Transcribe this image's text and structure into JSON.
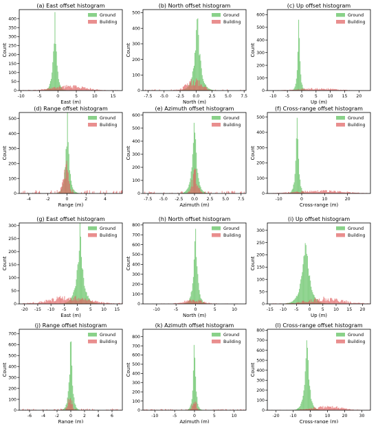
{
  "colors": {
    "ground": "#5cbf5c",
    "building": "#e06262"
  },
  "legend_labels": {
    "ground": "Ground",
    "building": "Building"
  },
  "chart_data": [
    {
      "type": "bar",
      "title": "(a) East offset histogram",
      "xlabel": "East (m)",
      "ylabel": "Count",
      "xlim": [
        -10.5,
        17.5
      ],
      "ylim": [
        0,
        450
      ],
      "xticks": [
        -10,
        -5,
        0,
        5,
        10,
        15
      ],
      "yticks": [
        0,
        50,
        100,
        150,
        200,
        250,
        300,
        350,
        400
      ],
      "legend": "top-right",
      "grid": false,
      "series": [
        {
          "name": "Ground",
          "center": -0.8,
          "peak": 425,
          "spread": 0.55
        },
        {
          "name": "Building",
          "center": 3,
          "peak": 22,
          "spread": 6
        }
      ]
    },
    {
      "type": "bar",
      "title": "(b) North offset histogram",
      "xlabel": "North (m)",
      "ylabel": "Count",
      "xlim": [
        -8.3,
        7.8
      ],
      "ylim": [
        0,
        520
      ],
      "xticks": [
        -7.5,
        -5.0,
        -2.5,
        0.0,
        2.5,
        5.0,
        7.5
      ],
      "yticks": [
        0,
        100,
        200,
        300,
        400,
        500
      ],
      "legend": "top-right",
      "grid": false,
      "series": [
        {
          "name": "Ground",
          "center": 0.2,
          "peak": 480,
          "spread": 0.5
        },
        {
          "name": "Building",
          "center": -0.3,
          "peak": 60,
          "spread": 1.5
        }
      ]
    },
    {
      "type": "bar",
      "title": "(c) Up offset histogram",
      "xlabel": "Up (m)",
      "ylabel": "Count",
      "xlim": [
        -12,
        24
      ],
      "ylim": [
        0,
        640
      ],
      "xticks": [
        -10,
        -5,
        0,
        5,
        10,
        15,
        20
      ],
      "yticks": [
        0,
        100,
        200,
        300,
        400,
        500,
        600
      ],
      "legend": "top-right",
      "grid": false,
      "series": [
        {
          "name": "Ground",
          "center": -1,
          "peak": 610,
          "spread": 0.45
        },
        {
          "name": "Building",
          "center": 5,
          "peak": 14,
          "spread": 9
        }
      ]
    },
    {
      "type": "bar",
      "title": "(d) Range offset histogram",
      "xlabel": "Range (m)",
      "ylabel": "Count",
      "xlim": [
        -5,
        5.8
      ],
      "ylim": [
        0,
        540
      ],
      "xticks": [
        -4,
        -2,
        0,
        2,
        4
      ],
      "yticks": [
        0,
        100,
        200,
        300,
        400,
        500
      ],
      "legend": "top-right",
      "grid": false,
      "series": [
        {
          "name": "Ground",
          "center": 0.05,
          "peak": 515,
          "spread": 0.22
        },
        {
          "name": "Building",
          "center": -0.1,
          "peak": 150,
          "spread": 0.35
        }
      ]
    },
    {
      "type": "bar",
      "title": "(e) Azimuth offset histogram",
      "xlabel": "Azimuth (m)",
      "ylabel": "Count",
      "xlim": [
        -8.3,
        8.3
      ],
      "ylim": [
        0,
        620
      ],
      "xticks": [
        -7.5,
        -5.0,
        -2.5,
        0.0,
        2.5,
        5.0,
        7.5
      ],
      "yticks": [
        0,
        100,
        200,
        300,
        400,
        500,
        600
      ],
      "legend": "top-right",
      "grid": false,
      "series": [
        {
          "name": "Ground",
          "center": 0,
          "peak": 590,
          "spread": 0.4
        },
        {
          "name": "Building",
          "center": 0,
          "peak": 130,
          "spread": 0.6
        }
      ]
    },
    {
      "type": "bar",
      "title": "(f) Cross-range offset histogram",
      "xlabel": "Cross-range (m)",
      "ylabel": "Count",
      "xlim": [
        -15,
        30
      ],
      "ylim": [
        0,
        530
      ],
      "xticks": [
        -10,
        0,
        10,
        20
      ],
      "yticks": [
        0,
        100,
        200,
        300,
        400,
        500
      ],
      "legend": "top-right",
      "grid": false,
      "series": [
        {
          "name": "Ground",
          "center": -2,
          "peak": 510,
          "spread": 0.7
        },
        {
          "name": "Building",
          "center": 8,
          "peak": 15,
          "spread": 14
        }
      ]
    },
    {
      "type": "bar",
      "title": "(g) East offset histogram",
      "xlabel": "East (m)",
      "ylabel": "Count",
      "xlim": [
        -22,
        17
      ],
      "ylim": [
        0,
        310
      ],
      "xticks": [
        -20,
        -15,
        -10,
        -5,
        0,
        5,
        10,
        15
      ],
      "yticks": [
        0,
        50,
        100,
        150,
        200,
        250,
        300
      ],
      "legend": "top-right",
      "grid": false,
      "series": [
        {
          "name": "Ground",
          "center": 1,
          "peak": 285,
          "spread": 1.3
        },
        {
          "name": "Building",
          "center": -3,
          "peak": 22,
          "spread": 10
        }
      ]
    },
    {
      "type": "bar",
      "title": "(h) North offset histogram",
      "xlabel": "North (m)",
      "ylabel": "Count",
      "xlim": [
        -13.5,
        13
      ],
      "ylim": [
        0,
        820
      ],
      "xticks": [
        -10,
        -5,
        0,
        5,
        10
      ],
      "yticks": [
        0,
        100,
        200,
        300,
        400,
        500,
        600,
        700,
        800
      ],
      "legend": "top-right",
      "grid": false,
      "series": [
        {
          "name": "Ground",
          "center": 0,
          "peak": 790,
          "spread": 0.55
        },
        {
          "name": "Building",
          "center": -0.5,
          "peak": 35,
          "spread": 3
        }
      ]
    },
    {
      "type": "bar",
      "title": "(i) Up offset histogram",
      "xlabel": "Up (m)",
      "ylabel": "Count",
      "xlim": [
        -16,
        23
      ],
      "ylim": [
        0,
        330
      ],
      "xticks": [
        -15,
        -10,
        -5,
        0,
        5,
        10,
        15,
        20
      ],
      "yticks": [
        0,
        50,
        100,
        150,
        200,
        250,
        300
      ],
      "legend": "top-right",
      "grid": false,
      "series": [
        {
          "name": "Ground",
          "center": -1.5,
          "peak": 300,
          "spread": 1.5
        },
        {
          "name": "Building",
          "center": 6,
          "peak": 18,
          "spread": 9
        }
      ]
    },
    {
      "type": "bar",
      "title": "(j) Range offset histogram",
      "xlabel": "Range (m)",
      "ylabel": "Count",
      "xlim": [
        -7.5,
        7.5
      ],
      "ylim": [
        0,
        740
      ],
      "xticks": [
        -6,
        -4,
        -2,
        0,
        2,
        4,
        6
      ],
      "yticks": [
        0,
        100,
        200,
        300,
        400,
        500,
        600,
        700
      ],
      "legend": "top-right",
      "grid": false,
      "series": [
        {
          "name": "Ground",
          "center": 0,
          "peak": 720,
          "spread": 0.25
        },
        {
          "name": "Building",
          "center": -0.15,
          "peak": 100,
          "spread": 0.4
        }
      ]
    },
    {
      "type": "bar",
      "title": "(k) Azimuth offset histogram",
      "xlabel": "Azimuth (m)",
      "ylabel": "Count",
      "xlim": [
        -13,
        13
      ],
      "ylim": [
        0,
        880
      ],
      "xticks": [
        -10,
        -5,
        0,
        5,
        10
      ],
      "yticks": [
        0,
        100,
        200,
        300,
        400,
        500,
        600,
        700,
        800
      ],
      "legend": "top-right",
      "grid": false,
      "series": [
        {
          "name": "Ground",
          "center": 0,
          "peak": 840,
          "spread": 0.35
        },
        {
          "name": "Building",
          "center": 0,
          "peak": 90,
          "spread": 0.7
        }
      ]
    },
    {
      "type": "bar",
      "title": "(l) Cross-range offset histogram",
      "xlabel": "Cross-range (m)",
      "ylabel": "Count",
      "xlim": [
        -25,
        35
      ],
      "ylim": [
        0,
        810
      ],
      "xticks": [
        -20,
        -10,
        0,
        10,
        20,
        30
      ],
      "yticks": [
        0,
        100,
        200,
        300,
        400,
        500,
        600,
        700,
        800
      ],
      "legend": "top-right",
      "grid": false,
      "series": [
        {
          "name": "Ground",
          "center": -2,
          "peak": 780,
          "spread": 1.4
        },
        {
          "name": "Building",
          "center": 10,
          "peak": 30,
          "spread": 12
        }
      ]
    }
  ]
}
